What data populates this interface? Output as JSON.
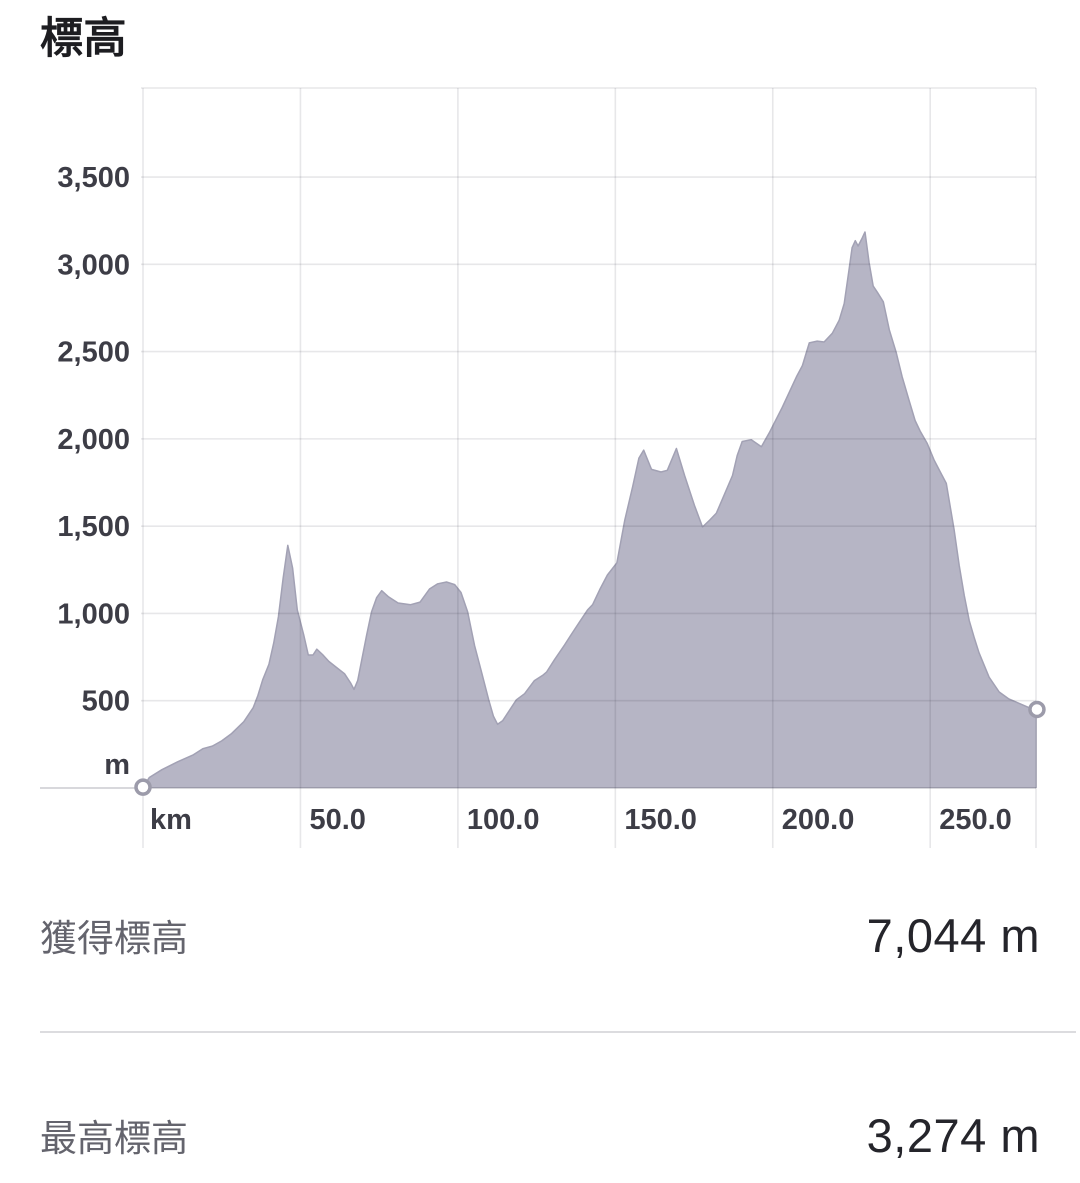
{
  "title": "標高",
  "chart_data": {
    "type": "area",
    "title": "標高",
    "x_unit_label": "km",
    "y_unit_label": "m",
    "grid": true,
    "x_range": [
      0,
      283.6
    ],
    "y_range": [
      0,
      4010
    ],
    "x_ticks": [
      {
        "value": 50,
        "label": "50.0"
      },
      {
        "value": 100,
        "label": "100.0"
      },
      {
        "value": 150,
        "label": "150.0"
      },
      {
        "value": 200,
        "label": "200.0"
      },
      {
        "value": 250,
        "label": "250.0"
      }
    ],
    "y_ticks": [
      {
        "value": 500,
        "label": "500"
      },
      {
        "value": 1000,
        "label": "1,000"
      },
      {
        "value": 1500,
        "label": "1,500"
      },
      {
        "value": 2000,
        "label": "2,000"
      },
      {
        "value": 2500,
        "label": "2,500"
      },
      {
        "value": 3000,
        "label": "3,000"
      },
      {
        "value": 3500,
        "label": "3,500"
      }
    ],
    "series": [
      {
        "name": "elevation-profile",
        "points": [
          [
            0,
            5
          ],
          [
            2,
            60
          ],
          [
            6,
            105
          ],
          [
            11,
            150
          ],
          [
            16,
            190
          ],
          [
            19,
            225
          ],
          [
            22,
            240
          ],
          [
            25,
            270
          ],
          [
            28,
            310
          ],
          [
            32,
            380
          ],
          [
            35,
            460
          ],
          [
            36.5,
            530
          ],
          [
            38,
            620
          ],
          [
            40,
            710
          ],
          [
            41.5,
            830
          ],
          [
            43,
            980
          ],
          [
            44.5,
            1200
          ],
          [
            46,
            1390
          ],
          [
            47.5,
            1260
          ],
          [
            49,
            1020
          ],
          [
            51,
            880
          ],
          [
            52.5,
            762
          ],
          [
            54,
            762
          ],
          [
            55.2,
            795
          ],
          [
            57,
            765
          ],
          [
            59,
            725
          ],
          [
            61.5,
            690
          ],
          [
            64,
            655
          ],
          [
            66,
            600
          ],
          [
            67,
            565
          ],
          [
            68.2,
            615
          ],
          [
            69.5,
            735
          ],
          [
            71,
            875
          ],
          [
            72.6,
            1010
          ],
          [
            74.2,
            1090
          ],
          [
            75.8,
            1130
          ],
          [
            78,
            1095
          ],
          [
            81,
            1060
          ],
          [
            85,
            1050
          ],
          [
            88,
            1065
          ],
          [
            91,
            1140
          ],
          [
            93.6,
            1170
          ],
          [
            96.4,
            1180
          ],
          [
            99,
            1165
          ],
          [
            101,
            1120
          ],
          [
            103.1,
            1010
          ],
          [
            105.3,
            815
          ],
          [
            107.5,
            665
          ],
          [
            109.8,
            505
          ],
          [
            111.3,
            410
          ],
          [
            112.6,
            365
          ],
          [
            114.2,
            385
          ],
          [
            116.4,
            445
          ],
          [
            118.6,
            505
          ],
          [
            121.2,
            540
          ],
          [
            124.3,
            615
          ],
          [
            126.9,
            645
          ],
          [
            128.2,
            665
          ],
          [
            130.7,
            735
          ],
          [
            133.9,
            820
          ],
          [
            136.4,
            890
          ],
          [
            138.6,
            950
          ],
          [
            141.2,
            1020
          ],
          [
            142.8,
            1050
          ],
          [
            145,
            1135
          ],
          [
            147.5,
            1220
          ],
          [
            150.5,
            1290
          ],
          [
            153,
            1535
          ],
          [
            155.5,
            1725
          ],
          [
            157.5,
            1890
          ],
          [
            159,
            1935
          ],
          [
            161.5,
            1825
          ],
          [
            164.5,
            1810
          ],
          [
            166.5,
            1820
          ],
          [
            169.4,
            1945
          ],
          [
            172,
            1790
          ],
          [
            175.1,
            1620
          ],
          [
            177.7,
            1495
          ],
          [
            180,
            1535
          ],
          [
            182.1,
            1575
          ],
          [
            184.6,
            1680
          ],
          [
            187.2,
            1790
          ],
          [
            188.7,
            1905
          ],
          [
            190.3,
            1985
          ],
          [
            193.2,
            1995
          ],
          [
            196.4,
            1955
          ],
          [
            198.9,
            2035
          ],
          [
            203,
            2180
          ],
          [
            207.5,
            2355
          ],
          [
            209.4,
            2420
          ],
          [
            211.6,
            2550
          ],
          [
            214.1,
            2560
          ],
          [
            216.3,
            2555
          ],
          [
            218.9,
            2605
          ],
          [
            221.1,
            2680
          ],
          [
            222.7,
            2775
          ],
          [
            224.3,
            2980
          ],
          [
            225.2,
            3095
          ],
          [
            226.2,
            3135
          ],
          [
            227.1,
            3105
          ],
          [
            228.4,
            3150
          ],
          [
            229.3,
            3185
          ],
          [
            230.6,
            3010
          ],
          [
            231.9,
            2875
          ],
          [
            233.2,
            2840
          ],
          [
            235.1,
            2785
          ],
          [
            237,
            2625
          ],
          [
            239.2,
            2495
          ],
          [
            241.1,
            2355
          ],
          [
            243.3,
            2220
          ],
          [
            245.2,
            2105
          ],
          [
            246.8,
            2045
          ],
          [
            249,
            1975
          ],
          [
            251.2,
            1880
          ],
          [
            253.2,
            1810
          ],
          [
            255.1,
            1745
          ],
          [
            257.6,
            1480
          ],
          [
            259.2,
            1275
          ],
          [
            260.8,
            1105
          ],
          [
            262.4,
            960
          ],
          [
            264,
            860
          ],
          [
            265.5,
            775
          ],
          [
            268.7,
            635
          ],
          [
            271.9,
            550
          ],
          [
            275,
            510
          ],
          [
            278.2,
            485
          ],
          [
            281.4,
            460
          ],
          [
            283.9,
            450
          ]
        ]
      }
    ],
    "markers": {
      "start": [
        0,
        5
      ],
      "end": [
        283.9,
        450
      ]
    }
  },
  "stats": [
    {
      "label": "獲得標高",
      "value": "7,044 m"
    },
    {
      "label": "最高標高",
      "value": "3,274 m"
    }
  ],
  "colors": {
    "area_fill": "#b6b5c5",
    "area_line": "#a2a1b4",
    "grid": "rgba(20,20,40,0.10)",
    "axis": "rgba(20,20,40,0.22)",
    "marker_stroke": "#9c9baa",
    "marker_fill": "#ffffff",
    "tick_text": "#3d3d46"
  }
}
